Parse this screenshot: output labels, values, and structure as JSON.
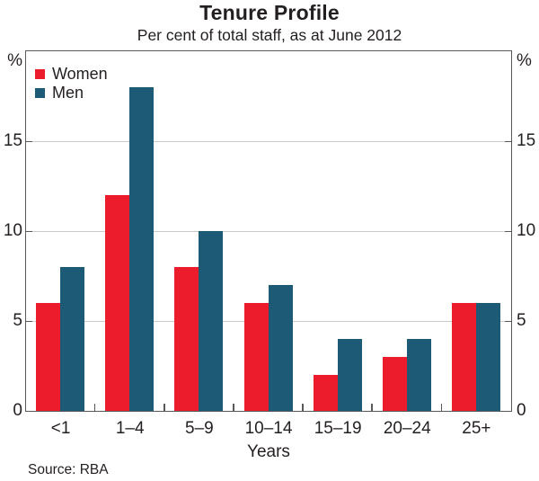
{
  "title": "Tenure Profile",
  "subtitle": "Per cent of total staff, as at June 2012",
  "axes": {
    "left_unit": "%",
    "right_unit": "%",
    "xlabel": "Years"
  },
  "source": "Source: RBA",
  "colors": {
    "women": "#ec1c2c",
    "men": "#1d5a75",
    "frame": "#58595b",
    "gridline": "#cbcbcb",
    "text": "#231f20"
  },
  "chart_data": {
    "type": "bar",
    "title": "Tenure Profile",
    "subtitle": "Per cent of total staff, as at June 2012",
    "categories": [
      "<1",
      "1–4",
      "5–9",
      "10–14",
      "15–19",
      "20–24",
      "25+"
    ],
    "series": [
      {
        "name": "Women",
        "color": "#ec1c2c",
        "values": [
          6,
          12,
          8,
          6,
          2,
          3,
          6
        ]
      },
      {
        "name": "Men",
        "color": "#1d5a75",
        "values": [
          8,
          18,
          10,
          7,
          4,
          4,
          6
        ]
      }
    ],
    "xlabel": "Years",
    "ylabel": "%",
    "ylim": [
      0,
      20
    ],
    "yticks": [
      0,
      5,
      10,
      15
    ],
    "grid": true,
    "legend_position": "top-left",
    "source_note": "Source: RBA"
  }
}
